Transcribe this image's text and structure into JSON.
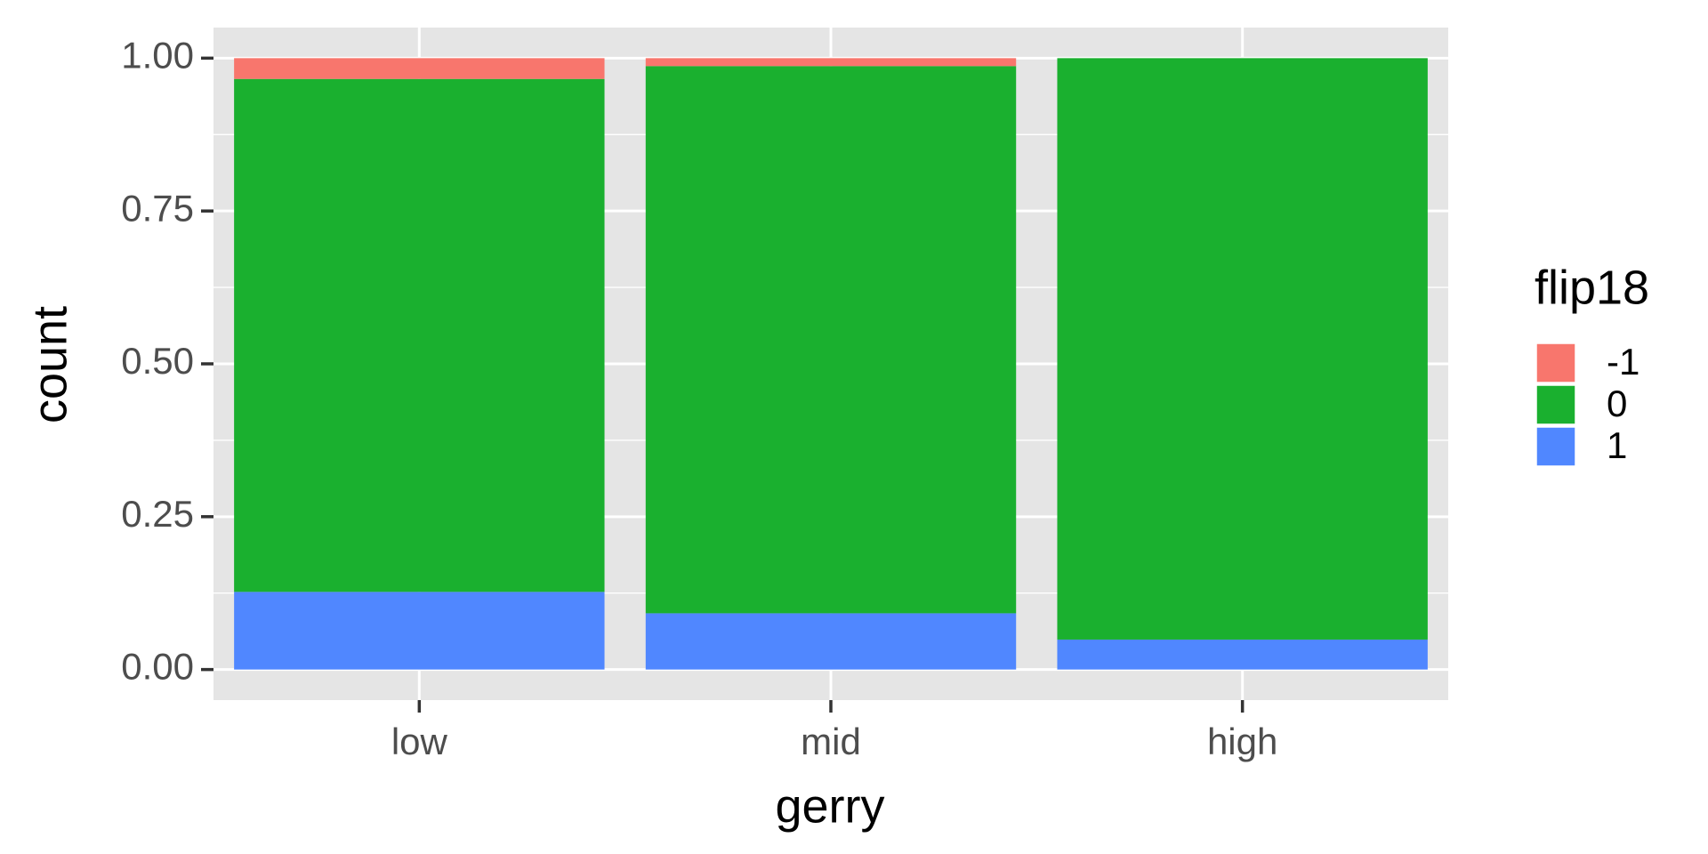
{
  "chart_data": {
    "type": "stacked_bar",
    "x_label": "gerry",
    "y_label": "count",
    "legend_title": "flip18",
    "categories": [
      "low",
      "mid",
      "high"
    ],
    "series": [
      {
        "name": "-1",
        "color": "#f8766d",
        "values": [
          0.034,
          0.013,
          0
        ]
      },
      {
        "name": "0",
        "color": "#1ab02f",
        "values": [
          0.839,
          0.895,
          0.951
        ]
      },
      {
        "name": "1",
        "color": "#5087ff",
        "values": [
          0.127,
          0.092,
          0.049
        ]
      }
    ],
    "ylim": [
      -0.05,
      1.05
    ],
    "yticks": [
      {
        "value": 0,
        "label": "0.00"
      },
      0.25,
      {
        "value": 0.5,
        "label": "0.50"
      },
      0.75,
      {
        "value": 1,
        "label": "1.00"
      }
    ],
    "grid": true,
    "legend": "right"
  }
}
